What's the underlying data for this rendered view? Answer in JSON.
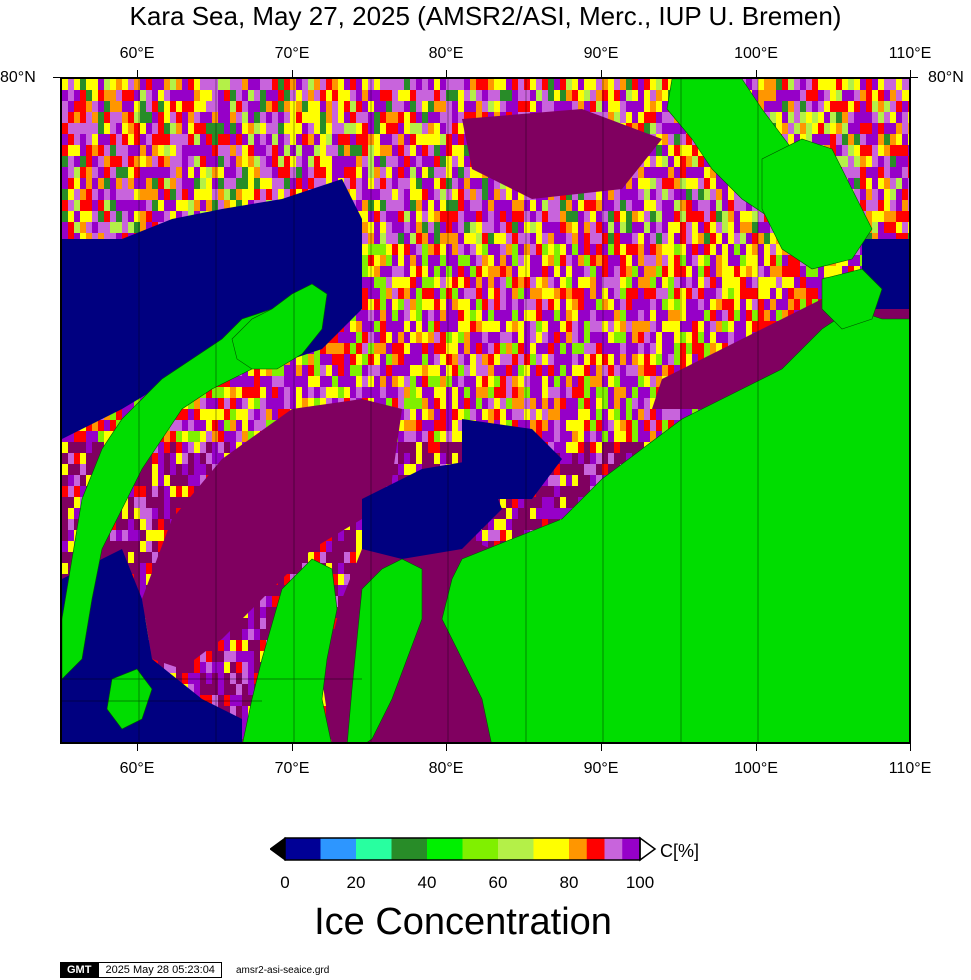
{
  "title": "Kara Sea, May 27, 2025 (AMSR2/ASI, Merc., IUP U. Bremen)",
  "map": {
    "projection": "Mercator",
    "lon_range": [
      55,
      110
    ],
    "lat_range": [
      67.5,
      80
    ],
    "lon_ticks": [
      "60°E",
      "70°E",
      "80°E",
      "90°E",
      "100°E",
      "110°E"
    ],
    "lon_tick_values": [
      60,
      70,
      80,
      90,
      100,
      110
    ],
    "lat_label_left": "80°N",
    "lat_label_right": "80°N",
    "colors": {
      "land": "#00dd00",
      "open_water": "#000080",
      "full_ice": "#800060"
    }
  },
  "colorbar": {
    "colors": [
      "#000096",
      "#2d96ff",
      "#28ffa0",
      "#288c28",
      "#00f000",
      "#80f000",
      "#b4f048",
      "#ffff00",
      "#ff9600",
      "#ff0000",
      "#c864dc",
      "#9600c8"
    ],
    "stops": [
      0,
      10,
      20,
      30,
      40,
      50,
      60,
      70,
      80,
      85,
      90,
      95,
      100
    ],
    "tick_labels": [
      "0",
      "20",
      "40",
      "60",
      "80",
      "100"
    ],
    "unit": "C[%]"
  },
  "legend_title": "Ice Concentration",
  "footer": {
    "logo": "GMT",
    "timestamp": "2025 May 28 05:23:04",
    "filename": "amsr2-asi-seaice.grd"
  }
}
